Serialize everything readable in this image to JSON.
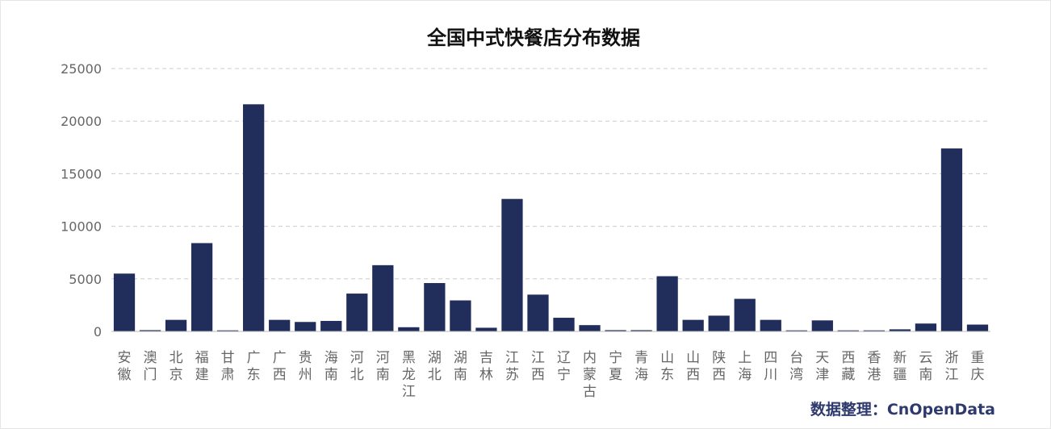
{
  "chart_data": {
    "type": "bar",
    "title": "全国中式快餐店分布数据",
    "xlabel": "",
    "ylabel": "",
    "ylim": [
      0,
      25000
    ],
    "yticks": [
      0,
      5000,
      10000,
      15000,
      20000,
      25000
    ],
    "grid": true,
    "bar_color": "#212d5a",
    "categories": [
      "安徽",
      "澳门",
      "北京",
      "福建",
      "甘肃",
      "广东",
      "广西",
      "贵州",
      "海南",
      "河北",
      "河南",
      "黑龙江",
      "湖北",
      "湖南",
      "吉林",
      "江苏",
      "江西",
      "辽宁",
      "内蒙古",
      "宁夏",
      "青海",
      "山东",
      "山西",
      "陕西",
      "上海",
      "四川",
      "台湾",
      "天津",
      "西藏",
      "香港",
      "新疆",
      "云南",
      "浙江",
      "重庆"
    ],
    "values": [
      5500,
      120,
      1100,
      8400,
      100,
      21600,
      1100,
      900,
      1000,
      3600,
      6300,
      400,
      4600,
      2950,
      350,
      12600,
      3500,
      1300,
      600,
      120,
      120,
      5250,
      1100,
      1500,
      3100,
      1100,
      100,
      1050,
      100,
      100,
      200,
      750,
      17400,
      650
    ],
    "source_note": "数据整理：CnOpenData"
  }
}
